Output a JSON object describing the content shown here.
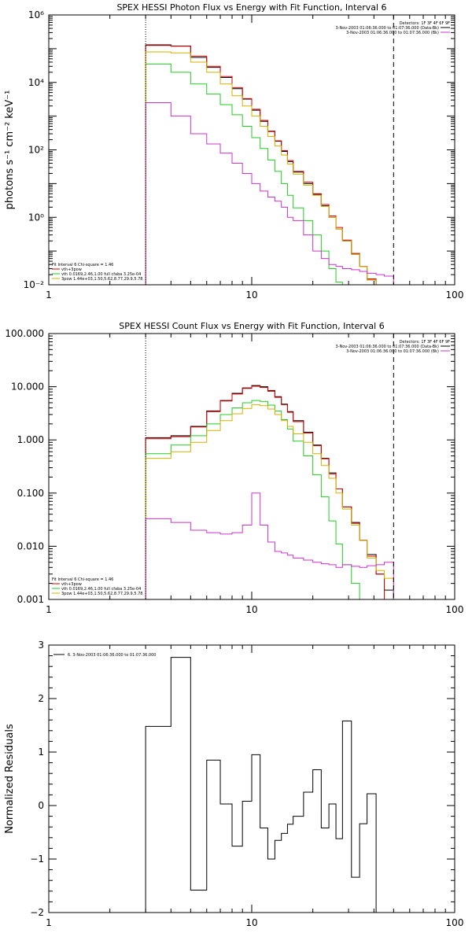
{
  "chart_data": [
    {
      "id": "photon",
      "type": "line",
      "step": true,
      "title": "SPEX HESSI Photon Flux vs Energy with Fit Function, Interval 6",
      "ylabel": "photons s⁻¹ cm⁻² keV⁻¹",
      "xscale": "log",
      "yscale": "log",
      "xlim": [
        1,
        100
      ],
      "ylim": [
        0.01,
        1000000
      ],
      "xticks": [
        {
          "value": 1,
          "label": "1"
        },
        {
          "value": 10,
          "label": "10"
        },
        {
          "value": 100,
          "label": "100"
        }
      ],
      "yticks": [
        {
          "value": 0.01,
          "label": "10⁻²"
        },
        {
          "value": 1,
          "label": "10⁰"
        },
        {
          "value": 100,
          "label": "10²"
        },
        {
          "value": 10000,
          "label": "10⁴"
        },
        {
          "value": 1000000,
          "label": "10⁶"
        }
      ],
      "legend_top_right": [
        {
          "text": "Detectors: 1F 3F 4F 6F 9F",
          "color": null
        },
        {
          "text": "3-Nov-2003 01:06:36.000 to 01:07:36.000 (Data-Bk)",
          "color": "#000000"
        },
        {
          "text": "3-Nov-2003 01:06:36.000 to 01:07:36.000 (Bk)",
          "color": "#cc33cc"
        }
      ],
      "legend_bottom_left": [
        {
          "text": "Fit Interval  6    Chi-square = 1.46",
          "color": null
        },
        {
          "text": "vth+3pow",
          "color": "#dd0000"
        },
        {
          "text": "vth 0.0169,2.46,1.00  full cfaba 3.25e-04",
          "color": "#22cc22"
        },
        {
          "text": "3pow 1.44e+03,1.50,5.62,8.77,29.9,5.78",
          "color": "#d4b000"
        }
      ],
      "vlines": [
        {
          "x": 3,
          "style": "dotted"
        },
        {
          "x": 50,
          "style": "dashed"
        }
      ],
      "edges": [
        3,
        4,
        5,
        6,
        7,
        8,
        9,
        10,
        11,
        12,
        13,
        14,
        15,
        16,
        18,
        20,
        22,
        24,
        26,
        28,
        31,
        34,
        37,
        41,
        45,
        50
      ],
      "series": [
        {
          "name": "Data-Bk",
          "color": "#000000",
          "values": [
            130000,
            120000,
            55000,
            28000,
            14000,
            6500,
            3200,
            1500,
            700,
            350,
            180,
            90,
            45,
            22,
            10,
            4.8,
            2.2,
            1.0,
            0.45,
            0.2,
            0.08,
            0.035,
            0.014,
            0.005,
            null
          ]
        },
        {
          "name": "vth+3pow",
          "color": "#dd0000",
          "values": [
            125000,
            118000,
            60000,
            30000,
            15000,
            7000,
            3300,
            1600,
            750,
            360,
            185,
            95,
            48,
            23,
            11,
            5,
            2.4,
            1.1,
            0.5,
            0.21,
            0.085,
            0.035,
            0.015,
            0.0055,
            null
          ]
        },
        {
          "name": "vth",
          "color": "#22cc22",
          "values": [
            35000,
            20000,
            9000,
            4500,
            2200,
            1100,
            500,
            230,
            110,
            50,
            23,
            10,
            4.5,
            1.9,
            0.8,
            0.3,
            0.1,
            0.03,
            0.012,
            0.005,
            null,
            null,
            null,
            null,
            null
          ]
        },
        {
          "name": "3pow",
          "color": "#d4b000",
          "values": [
            80000,
            75000,
            40000,
            20000,
            9000,
            4000,
            2000,
            1000,
            500,
            250,
            130,
            70,
            38,
            19,
            9,
            4.5,
            2.1,
            1.0,
            0.45,
            0.2,
            0.08,
            0.035,
            0.014,
            0.005,
            null
          ]
        },
        {
          "name": "Bk",
          "color": "#cc33cc",
          "values": [
            2500,
            1000,
            300,
            150,
            80,
            40,
            20,
            10,
            6,
            4,
            3,
            2,
            1,
            0.8,
            0.3,
            0.1,
            0.06,
            0.04,
            0.035,
            0.03,
            0.028,
            0.025,
            0.022,
            0.02,
            0.018
          ]
        }
      ]
    },
    {
      "id": "count",
      "type": "line",
      "step": true,
      "title": "SPEX HESSI Count Flux vs Energy with Fit Function, Interval 6",
      "xscale": "log",
      "yscale": "log",
      "xlim": [
        1,
        100
      ],
      "ylim": [
        0.001,
        100
      ],
      "xticks": [
        {
          "value": 1,
          "label": "1"
        },
        {
          "value": 10,
          "label": "10"
        },
        {
          "value": 100,
          "label": "100"
        }
      ],
      "yticks": [
        {
          "value": 0.001,
          "label": "0.001"
        },
        {
          "value": 0.01,
          "label": "0.010"
        },
        {
          "value": 0.1,
          "label": "0.100"
        },
        {
          "value": 1,
          "label": "1.000"
        },
        {
          "value": 10,
          "label": "10.000"
        },
        {
          "value": 100,
          "label": "100.000"
        }
      ],
      "legend_top_right": [
        {
          "text": "Detectors: 1F 3F 4F 6F 9F",
          "color": null
        },
        {
          "text": "3-Nov-2003 01:06:36.000 to 01:07:36.000 (Data-Bk)",
          "color": "#000000"
        },
        {
          "text": "3-Nov-2003 01:06:36.000 to 01:07:36.000 (Bk)",
          "color": "#cc33cc"
        }
      ],
      "legend_bottom_left": [
        {
          "text": "Fit Interval  6    Chi-square = 1.46",
          "color": null
        },
        {
          "text": "vth+3pow",
          "color": "#dd0000"
        },
        {
          "text": "vth 0.0169,2.46,1.00  full cfaba 3.25e-04",
          "color": "#22cc22"
        },
        {
          "text": "3pow 1.44e+03,1.50,5.62,8.77,29.9,5.78",
          "color": "#d4b000"
        }
      ],
      "vlines": [
        {
          "x": 3,
          "style": "dotted"
        },
        {
          "x": 50,
          "style": "dashed"
        }
      ],
      "edges": [
        3,
        4,
        5,
        6,
        7,
        8,
        9,
        10,
        11,
        12,
        13,
        14,
        15,
        16,
        18,
        20,
        22,
        24,
        26,
        28,
        31,
        34,
        37,
        41,
        45,
        50
      ],
      "series": [
        {
          "name": "Data-Bk",
          "color": "#000000",
          "values": [
            1.1,
            1.2,
            1.8,
            3.5,
            5.5,
            7.5,
            9.5,
            10.5,
            10.0,
            8.5,
            6.5,
            4.7,
            3.4,
            2.3,
            1.4,
            0.8,
            0.45,
            0.24,
            0.12,
            0.055,
            0.028,
            0.013,
            0.007,
            0.003,
            0.0015
          ]
        },
        {
          "name": "vth+3pow",
          "color": "#dd0000",
          "values": [
            1.05,
            1.15,
            1.75,
            3.4,
            5.4,
            7.3,
            9.3,
            10.2,
            9.7,
            8.2,
            6.3,
            4.6,
            3.3,
            2.2,
            1.35,
            0.78,
            0.44,
            0.23,
            0.12,
            0.055,
            0.027,
            0.013,
            0.0065,
            0.003,
            null
          ]
        },
        {
          "name": "vth",
          "color": "#22cc22",
          "values": [
            0.55,
            0.8,
            1.2,
            2.0,
            3.0,
            4.0,
            5.0,
            5.5,
            5.3,
            4.5,
            3.5,
            2.4,
            1.6,
            0.95,
            0.5,
            0.22,
            0.085,
            0.03,
            0.011,
            0.0045,
            0.002,
            null,
            null,
            null,
            null
          ]
        },
        {
          "name": "3pow",
          "color": "#d4b000",
          "values": [
            0.45,
            0.6,
            0.9,
            1.5,
            2.3,
            3.1,
            3.9,
            4.6,
            4.4,
            3.8,
            3.0,
            2.3,
            1.8,
            1.3,
            0.9,
            0.55,
            0.33,
            0.19,
            0.1,
            0.05,
            0.025,
            0.013,
            0.006,
            0.0035,
            0.0025
          ]
        },
        {
          "name": "Bk",
          "color": "#cc33cc",
          "values": [
            0.033,
            0.028,
            0.02,
            0.018,
            0.017,
            0.018,
            0.025,
            0.1,
            0.025,
            0.012,
            0.008,
            0.0075,
            0.0068,
            0.006,
            0.0055,
            0.005,
            0.0047,
            0.0045,
            0.004,
            0.0045,
            0.0042,
            0.004,
            0.0043,
            0.0045,
            0.005
          ]
        }
      ]
    },
    {
      "id": "resid",
      "type": "line",
      "step": true,
      "ylabel": "Normalized Residuals",
      "xscale": "log",
      "yscale": "linear",
      "xlim": [
        1,
        100
      ],
      "ylim": [
        -2,
        3
      ],
      "xticks": [
        {
          "value": 1,
          "label": "1"
        },
        {
          "value": 10,
          "label": "10"
        },
        {
          "value": 100,
          "label": "100"
        }
      ],
      "yticks": [
        {
          "value": -2,
          "label": "−2"
        },
        {
          "value": -1,
          "label": "−1"
        },
        {
          "value": 0,
          "label": "0"
        },
        {
          "value": 1,
          "label": "1"
        },
        {
          "value": 2,
          "label": "2"
        },
        {
          "value": 3,
          "label": "3"
        }
      ],
      "legend_top_left": [
        {
          "text": "6. 3-Nov-2003 01:06:36.000 to 01:07:36.000",
          "color": "#000000"
        }
      ],
      "edges": [
        3,
        4,
        5,
        6,
        7,
        8,
        9,
        10,
        11,
        12,
        13,
        14,
        15,
        16,
        18,
        20,
        22,
        24,
        26,
        28,
        31,
        34,
        37,
        41,
        45,
        50
      ],
      "series": [
        {
          "name": "Residuals",
          "color": "#000000",
          "values": [
            1.48,
            2.77,
            -1.58,
            0.85,
            0.03,
            -0.76,
            0.08,
            0.95,
            -0.42,
            -1.0,
            -0.65,
            -0.52,
            -0.35,
            -0.2,
            0.25,
            0.67,
            -0.42,
            0.03,
            -0.62,
            1.58,
            -1.34,
            -0.34,
            0.22,
            -2.05,
            null
          ]
        }
      ]
    }
  ]
}
